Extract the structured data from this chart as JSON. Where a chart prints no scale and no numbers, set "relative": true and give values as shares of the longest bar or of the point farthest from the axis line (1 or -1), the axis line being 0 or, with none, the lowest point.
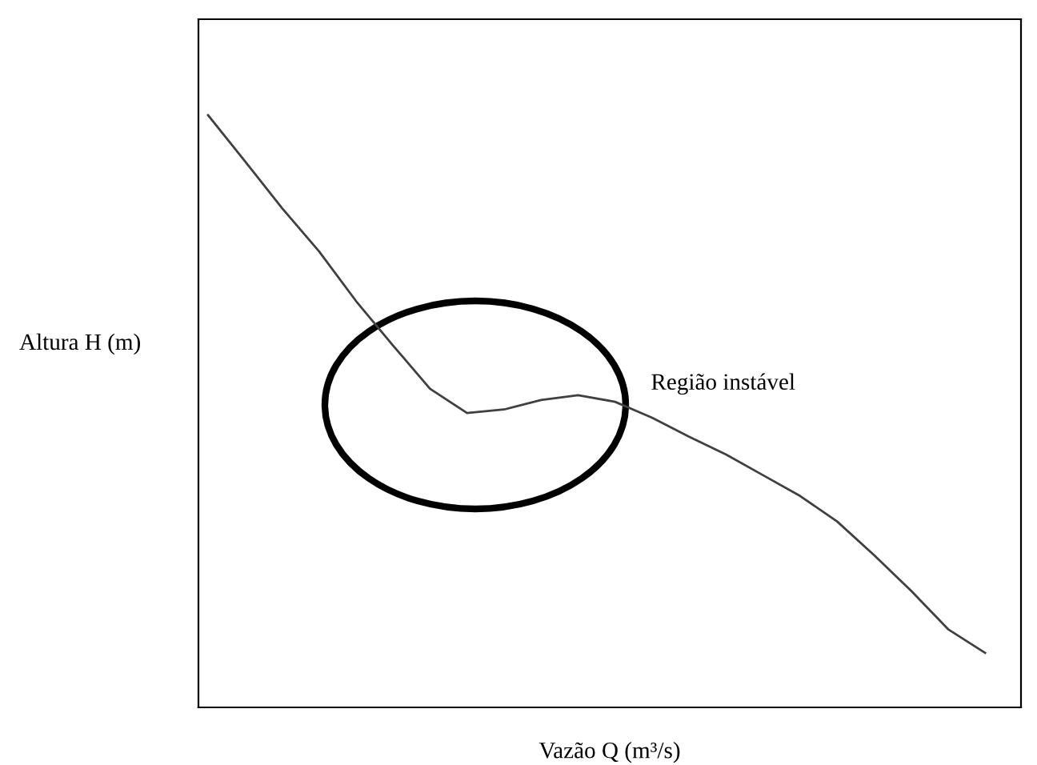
{
  "chart_data": {
    "type": "line",
    "relative": true,
    "xlabel": "Vazão Q (m³/s)",
    "ylabel": "Altura H (m)",
    "categories": [
      null,
      null,
      null,
      null,
      null,
      null,
      null,
      null,
      null,
      null,
      null,
      null,
      null,
      null,
      null,
      null,
      null,
      null,
      null,
      null,
      null,
      null
    ],
    "series": [
      {
        "color": "#404040",
        "values": [
          1.0,
          0.922,
          0.843,
          0.77,
          0.686,
          0.611,
          0.538,
          0.497,
          0.503,
          0.519,
          0.527,
          0.516,
          0.489,
          0.457,
          0.427,
          0.392,
          0.357,
          0.314,
          0.257,
          0.197,
          0.132,
          0.092
        ]
      }
    ],
    "annotations": [
      "Região instável"
    ],
    "grid": false,
    "legend": false,
    "marker": "none",
    "line_style": "solid"
  }
}
